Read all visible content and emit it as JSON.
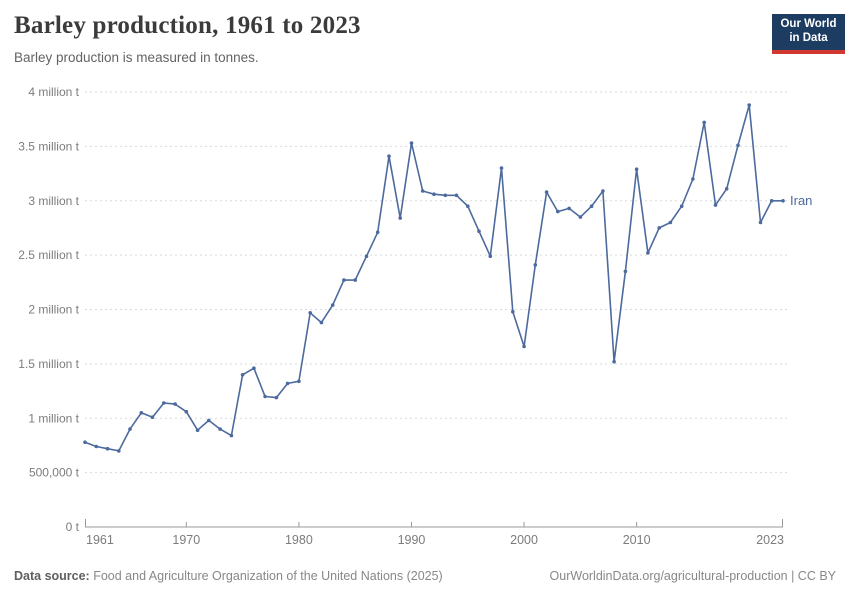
{
  "header": {
    "title": "Barley production, 1961 to 2023",
    "subtitle": "Barley production is measured in tonnes."
  },
  "logo": {
    "line1": "Our World",
    "line2": "in Data"
  },
  "footer": {
    "source_label": "Data source:",
    "source_text": " Food and Agriculture Organization of the United Nations (2025)",
    "link_text": "OurWorldinData.org/agricultural-production | CC BY"
  },
  "colors": {
    "line": "#4c6a9d",
    "gridline": "#d9d9d9",
    "axis": "#9a9a9a",
    "tick_text": "#7c7c7c",
    "logo_bg": "#1c3c61",
    "logo_red": "#d1382f"
  },
  "chart_data": {
    "type": "line",
    "title": "Barley production, 1961 to 2023",
    "subtitle": "Barley production is measured in tonnes.",
    "xlabel": "",
    "ylabel": "tonnes",
    "xlim": [
      1961,
      2023
    ],
    "ylim": [
      0,
      4000000
    ],
    "grid": "horizontal-dashed",
    "legend_position": "line-end-label",
    "x_ticks": [
      1961,
      1970,
      1980,
      1990,
      2000,
      2010,
      2023
    ],
    "y_ticks": [
      {
        "value": 0,
        "label": "0 t"
      },
      {
        "value": 500000,
        "label": "500,000 t"
      },
      {
        "value": 1000000,
        "label": "1 million t"
      },
      {
        "value": 1500000,
        "label": "1.5 million t"
      },
      {
        "value": 2000000,
        "label": "2 million t"
      },
      {
        "value": 2500000,
        "label": "2.5 million t"
      },
      {
        "value": 3000000,
        "label": "3 million t"
      },
      {
        "value": 3500000,
        "label": "3.5 million t"
      },
      {
        "value": 4000000,
        "label": "4 million t"
      }
    ],
    "series": [
      {
        "name": "Iran",
        "x": [
          1961,
          1962,
          1963,
          1964,
          1965,
          1966,
          1967,
          1968,
          1969,
          1970,
          1971,
          1972,
          1973,
          1974,
          1975,
          1976,
          1977,
          1978,
          1979,
          1980,
          1981,
          1982,
          1983,
          1984,
          1985,
          1986,
          1987,
          1988,
          1989,
          1990,
          1991,
          1992,
          1993,
          1994,
          1995,
          1996,
          1997,
          1998,
          1999,
          2000,
          2001,
          2002,
          2003,
          2004,
          2005,
          2006,
          2007,
          2008,
          2009,
          2010,
          2011,
          2012,
          2013,
          2014,
          2015,
          2016,
          2017,
          2018,
          2019,
          2020,
          2021,
          2022,
          2023
        ],
        "values": [
          780000,
          740000,
          720000,
          700000,
          900000,
          1050000,
          1010000,
          1140000,
          1130000,
          1060000,
          890000,
          980000,
          900000,
          840000,
          1400000,
          1460000,
          1200000,
          1190000,
          1320000,
          1340000,
          1970000,
          1880000,
          2040000,
          2270000,
          2270000,
          2490000,
          2710000,
          3410000,
          2840000,
          3530000,
          3090000,
          3060000,
          3050000,
          3050000,
          2950000,
          2720000,
          2490000,
          3300000,
          1980000,
          1660000,
          2410000,
          3080000,
          2900000,
          2930000,
          2850000,
          2950000,
          3090000,
          1520000,
          2350000,
          3290000,
          2520000,
          2750000,
          2800000,
          2950000,
          3200000,
          3720000,
          2960000,
          3110000,
          3510000,
          3880000,
          2800000,
          3000000,
          3000000
        ]
      }
    ]
  }
}
